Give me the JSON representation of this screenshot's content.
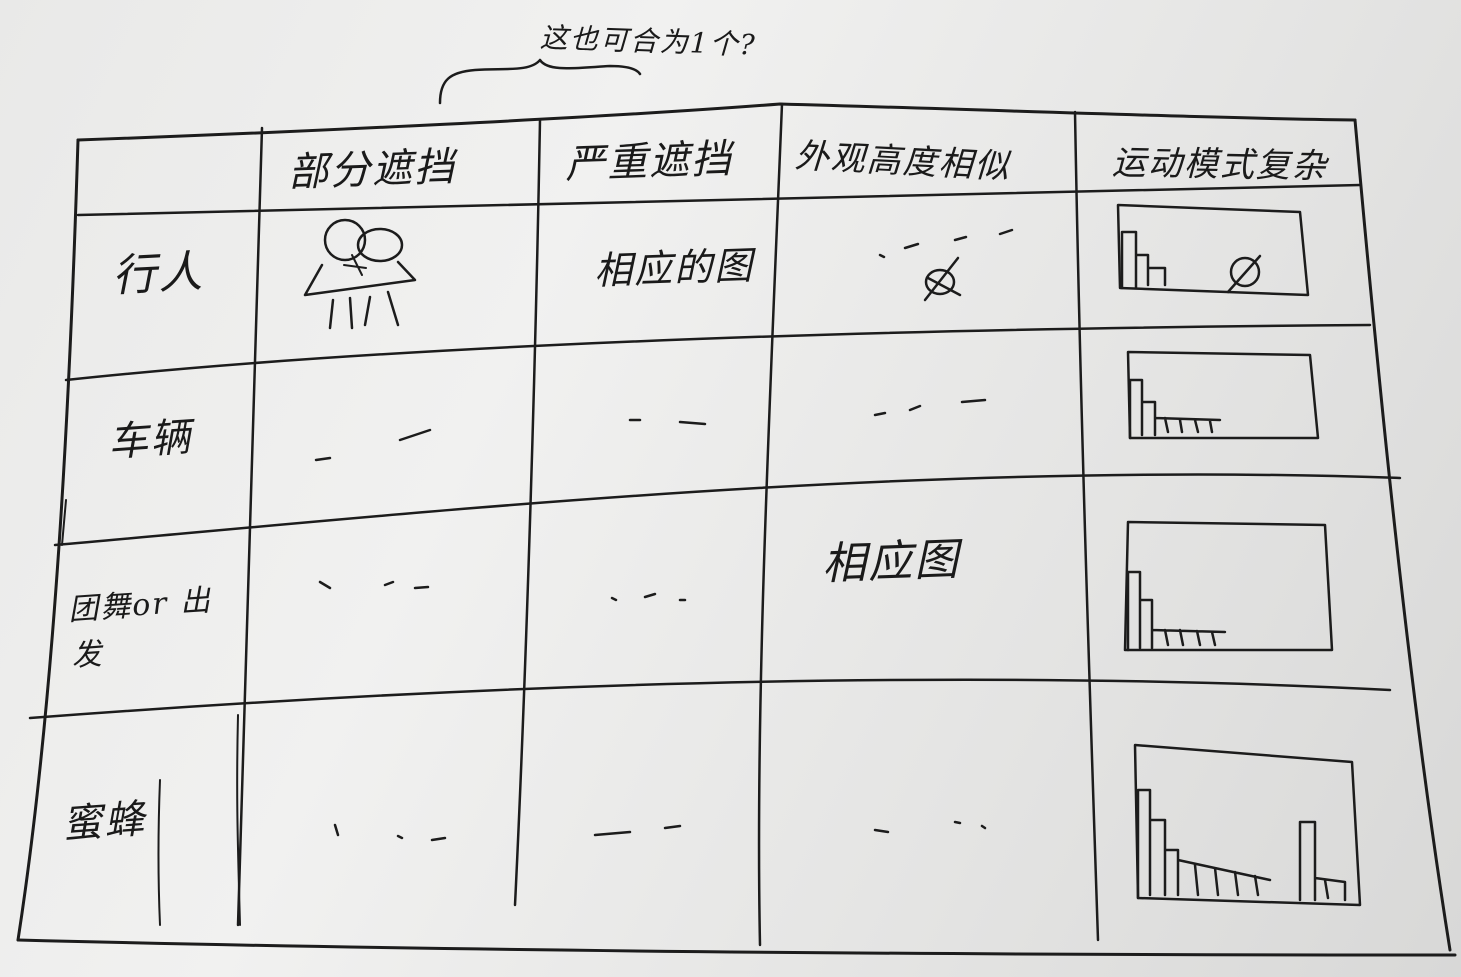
{
  "annotation": "这也可合为1个?",
  "table": {
    "column_headers": [
      "部分遮挡",
      "严重遮挡",
      "外观高度相似",
      "运动模式复杂"
    ],
    "row_headers": [
      "行人",
      "车辆",
      "团舞or 出发",
      "蜜蜂"
    ],
    "cells": [
      [
        "(sketch)",
        "相应的图",
        "...",
        "(histogram)"
      ],
      [
        "...",
        "...",
        "...",
        "(histogram)"
      ],
      [
        "...",
        "...",
        "相应图",
        "(histogram)"
      ],
      [
        "...",
        "...",
        "...",
        "(histogram)"
      ]
    ]
  },
  "icons": [
    "occlusion-sketch-icon",
    "crossed-out-mark-icon",
    "histogram-sketch-icon"
  ],
  "colors": {
    "paper": "#ececeb",
    "ink": "#1c1c1c"
  }
}
